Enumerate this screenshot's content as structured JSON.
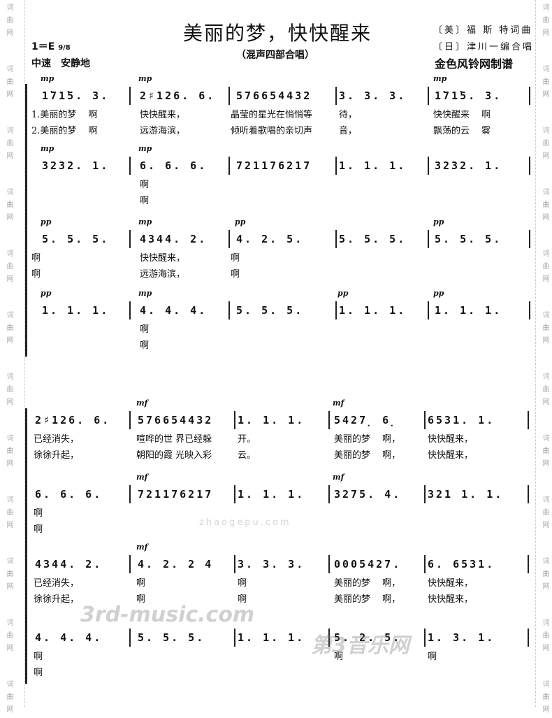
{
  "header": {
    "title": "美丽的梦，快快醒来",
    "subtitle": "（混声四部合唱）",
    "lyricist_composer": "〔美〕福 斯 特词曲",
    "arranger": "〔日〕津川一编合唱",
    "transcriber": "金色风铃网制谱",
    "key": "1＝E",
    "time_signature": "9/8",
    "tempo": "中速　安静地"
  },
  "side_watermark": "词曲网",
  "watermarks": [
    "3rd-music.com",
    "第3音乐网",
    "zhaogepu.com"
  ],
  "systems": [
    {
      "staves": [
        {
          "measures": [
            "1̇71̇5.  3.",
            "2♯126.  6.",
            "576654432",
            "3.  3.  3.",
            "1̇71̇5.  3."
          ],
          "dynamics": [
            "mp",
            "mp",
            "",
            "",
            "mp"
          ],
          "lyrics": [
            [
              "1.美丽的梦　 啊",
              "快快醒来，",
              "晶莹的星光在悄悄等",
              "待，",
              "快快醒来　 啊"
            ],
            [
              "2.美丽的梦　 啊",
              "远游海滨，",
              "倾听着歌唱的亲切声",
              "音，",
              "飘荡的云　 雾"
            ]
          ]
        },
        {
          "measures": [
            "3232.  1.",
            "6.  6.  6.",
            "721176217",
            "1.  1.  1.",
            "3232.  1."
          ],
          "dynamics": [
            "mp",
            "mp",
            "",
            "",
            ""
          ],
          "lyrics": [
            [
              "",
              "啊",
              "",
              "",
              ""
            ],
            [
              "",
              "啊",
              "",
              "",
              ""
            ]
          ]
        },
        {
          "measures": [
            "5.  5.  5.",
            "4344.  2.",
            "4.  2.  5.",
            "5.  5.  5.",
            "5.  5.  5."
          ],
          "dynamics": [
            "pp",
            "mp",
            "pp",
            "",
            "pp"
          ],
          "lyrics": [
            [
              "啊",
              "快快醒来，",
              "啊",
              "",
              ""
            ],
            [
              "啊",
              "远游海滨，",
              "啊",
              "",
              ""
            ]
          ]
        },
        {
          "measures": [
            "1.  1.  1.",
            "4.  4.  4.",
            "5.  5.  5.",
            "1.  1.  1.",
            "1.  1.  1."
          ],
          "dynamics": [
            "pp",
            "mp",
            "",
            "pp",
            "pp"
          ],
          "lyrics": [
            [
              "",
              "啊",
              "",
              "",
              ""
            ],
            [
              "",
              "啊",
              "",
              "",
              ""
            ]
          ]
        }
      ]
    },
    {
      "staves": [
        {
          "measures": [
            "2♯126.  6.",
            "576654432",
            "1.  1.  1.",
            "5427̣  6̣",
            "6531.  1."
          ],
          "dynamics": [
            "",
            "mf",
            "",
            "mf",
            ""
          ],
          "lyrics": [
            [
              "已经消失，",
              "喧哗的世  界已经躲",
              "开。",
              "美丽的梦　 啊，",
              "快快醒来，"
            ],
            [
              "徐徐升起，",
              "朝阳的霞  光映入彩",
              "云。",
              "美丽的梦　 啊，",
              "快快醒来，"
            ]
          ]
        },
        {
          "measures": [
            "6.  6.  6.",
            "721176217",
            "1.  1.  1.",
            "3275.  4.",
            "321 1.  1."
          ],
          "dynamics": [
            "",
            "mf",
            "",
            "mf",
            ""
          ],
          "lyrics": [
            [
              "啊",
              "",
              "",
              "",
              ""
            ],
            [
              "啊",
              "",
              "",
              "",
              ""
            ]
          ]
        },
        {
          "measures": [
            "4344.  2.",
            "4.  2. 2 4",
            "3.  3.  3.",
            "0005427.",
            "6.  6531."
          ],
          "dynamics": [
            "",
            "mf",
            "",
            "",
            ""
          ],
          "lyrics": [
            [
              "已经消失，",
              "啊",
              "啊",
              "美丽的梦　 啊，",
              "快快醒来，"
            ],
            [
              "徐徐升起，",
              "啊",
              "啊",
              "美丽的梦　 啊，",
              "快快醒来，"
            ]
          ]
        },
        {
          "measures": [
            "4.  4.  4.",
            "5.  5.  5.",
            "1.  1.  1.",
            "5.  2.  5.",
            "1.  3.  1."
          ],
          "dynamics": [
            "",
            "",
            "",
            "",
            ""
          ],
          "lyrics": [
            [
              "啊",
              "",
              "",
              "啊",
              "啊"
            ],
            [
              "啊",
              "",
              "",
              "",
              ""
            ]
          ]
        }
      ]
    }
  ]
}
